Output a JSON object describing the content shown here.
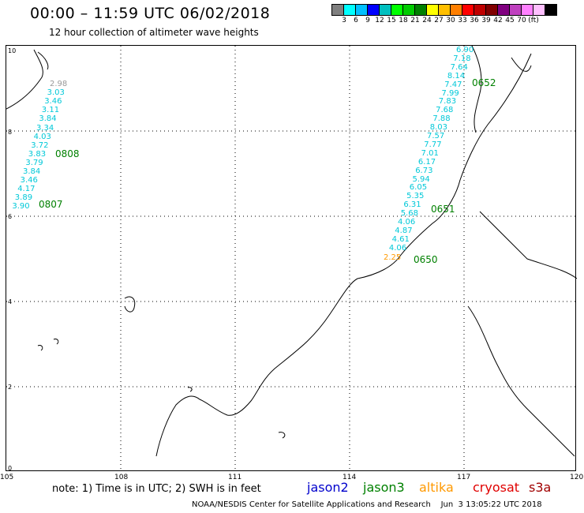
{
  "header": {
    "title": "00:00 – 11:59 UTC 06/02/2018",
    "subtitle": "12 hour collection of altimeter wave heights"
  },
  "color_scale": {
    "colors": [
      "#7f7f7f",
      "#00ffff",
      "#00bfff",
      "#0000ff",
      "#00bfbf",
      "#00ff00",
      "#00cc00",
      "#008000",
      "#ffff00",
      "#ffbf00",
      "#ff7f00",
      "#ff0000",
      "#bf0000",
      "#800000",
      "#800080",
      "#bf40bf",
      "#ff80ff",
      "#ffbfff",
      "#000000"
    ],
    "labels": [
      "3",
      "6",
      "9",
      "12",
      "15",
      "18",
      "21",
      "24",
      "27",
      "30",
      "33",
      "36",
      "39",
      "42",
      "45",
      "70",
      "(ft)"
    ]
  },
  "axes": {
    "x_ticks": [
      "105",
      "108",
      "111",
      "114",
      "117",
      "120"
    ],
    "y_ticks": [
      "0",
      "2",
      "4",
      "6",
      "8",
      "10"
    ]
  },
  "tracks": [
    {
      "label": "0808",
      "color": "#00c8d8",
      "values": [
        "2.98",
        "3.03",
        "3.46",
        "3.11",
        "3.84",
        "3.34",
        "4.03",
        "3.72",
        "3.83",
        "3.79",
        "3.84",
        "3.46",
        "4.17",
        "3.89",
        "3.90"
      ]
    },
    {
      "label": "0807",
      "values": []
    },
    {
      "label": "0652",
      "color": "#00c8d8",
      "values": [
        "6.90",
        "7.18",
        "7.64",
        "8.14",
        "7.47",
        "7.99",
        "7.83",
        "7.68",
        "7.88",
        "8.03",
        "7.57",
        "7.77",
        "7.01",
        "6.17",
        "6.73",
        "5.94",
        "6.05",
        "5.35",
        "6.31",
        "5.68",
        "4.06",
        "4.87",
        "4.61",
        "4.06"
      ]
    },
    {
      "label": "0651",
      "values": []
    },
    {
      "label": "0650",
      "color": "#ff9900",
      "values": [
        "2.25"
      ]
    }
  ],
  "note": "note: 1) Time is in UTC; 2) SWH is in feet",
  "legend": [
    {
      "name": "jason2",
      "color": "#0000cc"
    },
    {
      "name": "jason3",
      "color": "#008000"
    },
    {
      "name": "altika",
      "color": "#ff9900"
    },
    {
      "name": "cryosat",
      "color": "#e00000"
    },
    {
      "name": "s3a",
      "color": "#a00000"
    }
  ],
  "credit": "NOAA/NESDIS Center for Satellite Applications and Research    Jun  3 13:05:22 UTC 2018"
}
